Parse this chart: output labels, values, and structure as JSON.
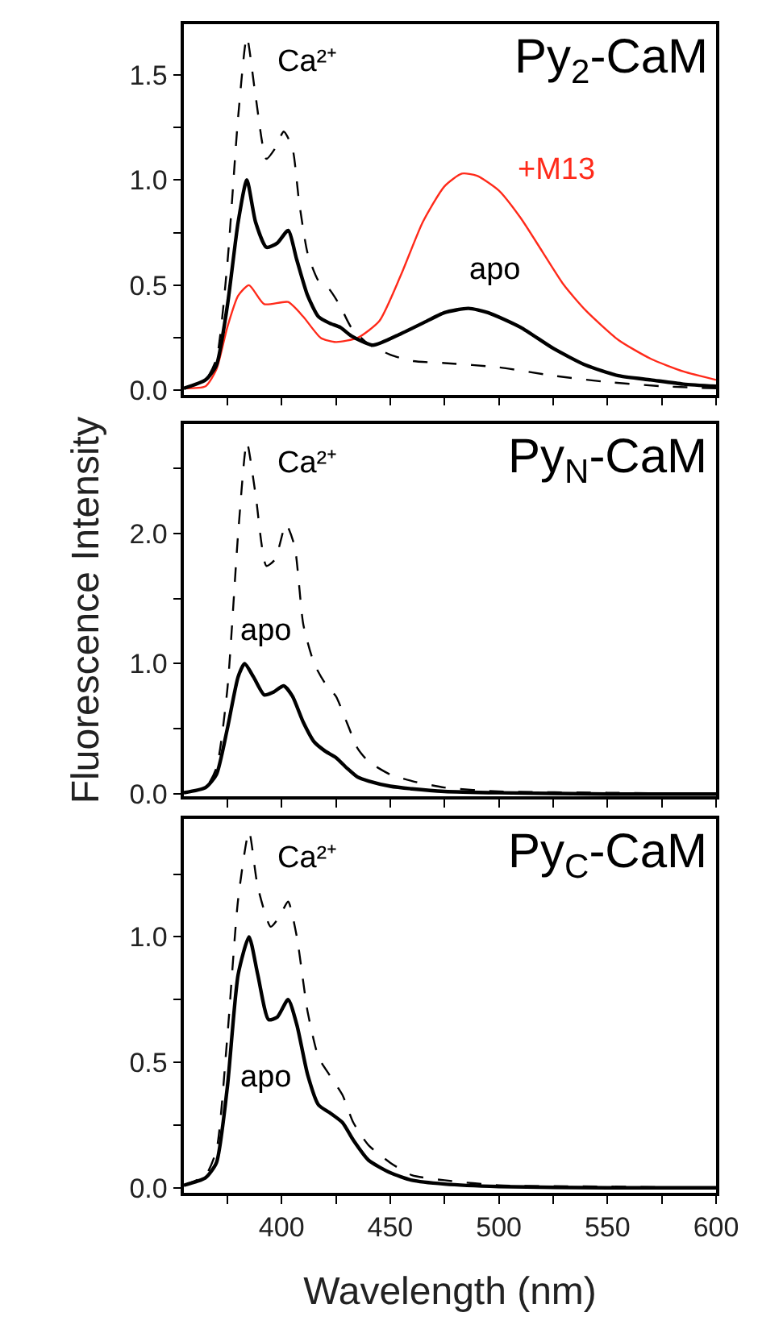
{
  "chart_data": [
    {
      "type": "line",
      "title": "Py$_{2}$-CaM",
      "xlim": [
        355,
        600
      ],
      "ylim": [
        -0.02,
        1.74
      ],
      "tick_labels": "y",
      "xticks": [
        {
          "value": 375,
          "label": null
        },
        400,
        {
          "value": 425,
          "label": null
        },
        450,
        {
          "value": 475,
          "label": null
        },
        500,
        {
          "value": 525,
          "label": null
        },
        550,
        {
          "value": 575,
          "label": null
        },
        600
      ],
      "yticks": [
        {
          "value": 0,
          "label": "0.0"
        },
        {
          "value": 0.25,
          "label": null
        },
        {
          "value": 0.5,
          "label": "0.5"
        },
        {
          "value": 0.75,
          "label": null
        },
        {
          "value": 1,
          "label": "1.0"
        },
        {
          "value": 1.25,
          "label": null
        },
        {
          "value": 1.5,
          "label": "1.5"
        }
      ],
      "series": [
        {
          "name": "Ca²⁺",
          "color": "#000000",
          "line_style": "dashed",
          "x": [
            355,
            365,
            370,
            375,
            380,
            384,
            388,
            393,
            397,
            401,
            405,
            408,
            412,
            417,
            422,
            427,
            432,
            440,
            450,
            460,
            475,
            500,
            525,
            550,
            575,
            600
          ],
          "values": [
            0.01,
            0.05,
            0.15,
            0.6,
            1.3,
            1.68,
            1.4,
            1.1,
            1.15,
            1.23,
            1.15,
            0.9,
            0.65,
            0.52,
            0.48,
            0.4,
            0.3,
            0.22,
            0.17,
            0.14,
            0.13,
            0.11,
            0.07,
            0.04,
            0.02,
            0.01
          ]
        },
        {
          "name": "+M13",
          "color": "#ff2a1a",
          "line_style": "solid",
          "x": [
            355,
            365,
            370,
            375,
            380,
            385,
            392,
            403,
            410,
            418,
            425,
            435,
            445,
            455,
            465,
            475,
            483,
            490,
            500,
            510,
            520,
            530,
            540,
            555,
            570,
            585,
            600
          ],
          "values": [
            0.01,
            0.02,
            0.1,
            0.3,
            0.45,
            0.5,
            0.41,
            0.42,
            0.35,
            0.25,
            0.23,
            0.25,
            0.33,
            0.55,
            0.8,
            0.97,
            1.03,
            1.02,
            0.95,
            0.82,
            0.66,
            0.5,
            0.38,
            0.24,
            0.15,
            0.09,
            0.05
          ]
        },
        {
          "name": "apo",
          "color": "#000000",
          "line_style": "solid",
          "x": [
            355,
            365,
            370,
            375,
            380,
            384,
            388,
            393,
            398,
            403,
            407,
            412,
            417,
            422,
            427,
            432,
            442,
            455,
            465,
            475,
            486,
            495,
            510,
            525,
            540,
            555,
            570,
            585,
            600
          ],
          "values": [
            0.01,
            0.05,
            0.12,
            0.4,
            0.8,
            1.0,
            0.8,
            0.68,
            0.7,
            0.76,
            0.62,
            0.45,
            0.35,
            0.32,
            0.3,
            0.26,
            0.215,
            0.27,
            0.32,
            0.37,
            0.39,
            0.37,
            0.3,
            0.2,
            0.12,
            0.07,
            0.05,
            0.03,
            0.02
          ]
        }
      ]
    },
    {
      "type": "line",
      "title": "Py$_{N}$-CaM",
      "ylabel": "Fluorescence Intensity",
      "xlim": [
        355,
        600
      ],
      "ylim": [
        -0.02,
        2.84
      ],
      "tick_labels": "y",
      "xticks": [
        {
          "value": 375,
          "label": null
        },
        400,
        {
          "value": 425,
          "label": null
        },
        450,
        {
          "value": 475,
          "label": null
        },
        500,
        {
          "value": 525,
          "label": null
        },
        550,
        {
          "value": 575,
          "label": null
        },
        600
      ],
      "yticks": [
        {
          "value": 0,
          "label": "0.0"
        },
        {
          "value": 0.5,
          "label": null
        },
        {
          "value": 1,
          "label": "1.0"
        },
        {
          "value": 1.5,
          "label": null
        },
        {
          "value": 2,
          "label": "2.0"
        },
        {
          "value": 2.5,
          "label": null
        }
      ],
      "series": [
        {
          "name": "Ca²⁺",
          "color": "#000000",
          "line_style": "dashed",
          "x": [
            355,
            365,
            370,
            375,
            380,
            384,
            388,
            393,
            397,
            402,
            406,
            410,
            415,
            420,
            425,
            430,
            435,
            440,
            450,
            460,
            475,
            500,
            550,
            600
          ],
          "values": [
            0.01,
            0.05,
            0.2,
            0.8,
            2.0,
            2.7,
            2.3,
            1.75,
            1.8,
            2.07,
            1.9,
            1.3,
            1.0,
            0.85,
            0.75,
            0.55,
            0.35,
            0.25,
            0.15,
            0.1,
            0.05,
            0.02,
            0.01,
            0.0
          ]
        },
        {
          "name": "apo",
          "color": "#000000",
          "line_style": "solid",
          "x": [
            355,
            365,
            370,
            375,
            380,
            383,
            387,
            392,
            396,
            401,
            405,
            410,
            415,
            420,
            425,
            430,
            435,
            440,
            450,
            460,
            475,
            500,
            550,
            600
          ],
          "values": [
            0.01,
            0.05,
            0.15,
            0.5,
            0.9,
            1.0,
            0.9,
            0.76,
            0.78,
            0.83,
            0.75,
            0.55,
            0.4,
            0.33,
            0.28,
            0.2,
            0.13,
            0.1,
            0.06,
            0.04,
            0.02,
            0.01,
            0.0,
            0.0
          ]
        }
      ]
    },
    {
      "type": "line",
      "title": "Py$_{C}$-CaM",
      "xlabel": "Wavelength (nm)",
      "xlim": [
        355,
        600
      ],
      "ylim": [
        -0.02,
        1.47
      ],
      "xticks": [
        {
          "value": 375,
          "label": null
        },
        400,
        {
          "value": 425,
          "label": null
        },
        450,
        {
          "value": 475,
          "label": null
        },
        500,
        {
          "value": 525,
          "label": null
        },
        550,
        {
          "value": 575,
          "label": null
        },
        600
      ],
      "yticks": [
        {
          "value": 0,
          "label": "0.0"
        },
        {
          "value": 0.25,
          "label": null
        },
        {
          "value": 0.5,
          "label": "0.5"
        },
        {
          "value": 0.75,
          "label": null
        },
        {
          "value": 1,
          "label": "1.0"
        },
        {
          "value": 1.25,
          "label": null
        }
      ],
      "series": [
        {
          "name": "Ca²⁺",
          "color": "#000000",
          "line_style": "dashed",
          "x": [
            355,
            365,
            370,
            375,
            380,
            385,
            389,
            395,
            399,
            403,
            407,
            412,
            417,
            422,
            428,
            433,
            440,
            450,
            460,
            475,
            500,
            550,
            600
          ],
          "values": [
            0.01,
            0.05,
            0.15,
            0.6,
            1.15,
            1.42,
            1.2,
            1.04,
            1.08,
            1.14,
            1.0,
            0.7,
            0.52,
            0.45,
            0.37,
            0.26,
            0.17,
            0.1,
            0.05,
            0.03,
            0.01,
            0.005,
            0.0
          ]
        },
        {
          "name": "apo",
          "color": "#000000",
          "line_style": "solid",
          "x": [
            355,
            365,
            370,
            375,
            380,
            385,
            389,
            394,
            398,
            403,
            407,
            412,
            417,
            422,
            428,
            433,
            440,
            450,
            460,
            475,
            500,
            550,
            600
          ],
          "values": [
            0.01,
            0.04,
            0.1,
            0.4,
            0.85,
            1.0,
            0.85,
            0.67,
            0.68,
            0.75,
            0.65,
            0.45,
            0.33,
            0.3,
            0.26,
            0.19,
            0.11,
            0.06,
            0.03,
            0.015,
            0.005,
            0.0,
            0.0
          ]
        }
      ]
    }
  ]
}
